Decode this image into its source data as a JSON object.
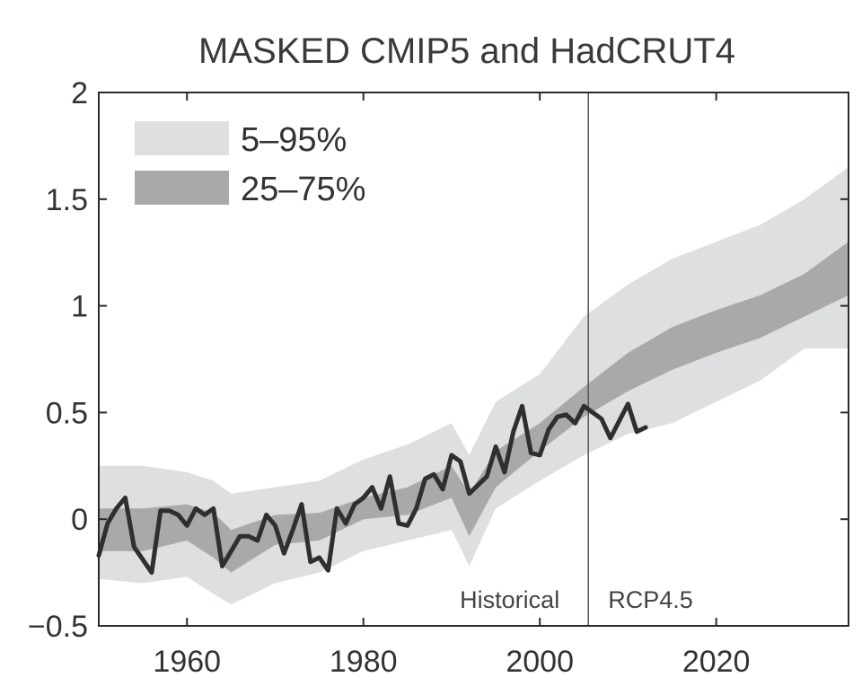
{
  "chart_data": {
    "type": "area",
    "title": "MASKED CMIP5 and HadCRUT4",
    "xlabel": "",
    "ylabel": "",
    "xlim": [
      1950,
      2035
    ],
    "ylim": [
      -0.5,
      2
    ],
    "xticks": [
      1960,
      1980,
      2000,
      2020
    ],
    "yticks": [
      -0.5,
      0,
      0.5,
      1,
      1.5,
      2
    ],
    "ytick_labels": [
      "−0.5",
      "0",
      "0.5",
      "1",
      "1.5",
      "2"
    ],
    "grid": false,
    "legend": {
      "placement": "top-left",
      "entries": [
        {
          "label": "5–95%",
          "color": "#dddfe0"
        },
        {
          "label": "25–75%",
          "color": "#a9a9a9"
        }
      ]
    },
    "divider": {
      "x": 2005.5,
      "left_label": "Historical",
      "right_label": "RCP4.5"
    },
    "bands": {
      "x": [
        1950,
        1955,
        1960,
        1963,
        1965,
        1970,
        1975,
        1980,
        1985,
        1990,
        1992,
        1995,
        2000,
        2005,
        2010,
        2015,
        2020,
        2025,
        2030,
        2035
      ],
      "p5": [
        -0.28,
        -0.3,
        -0.27,
        -0.35,
        -0.4,
        -0.3,
        -0.25,
        -0.15,
        -0.1,
        -0.05,
        -0.22,
        0.05,
        0.18,
        0.3,
        0.4,
        0.45,
        0.55,
        0.65,
        0.8,
        0.8
      ],
      "p25": [
        -0.15,
        -0.15,
        -0.1,
        -0.18,
        -0.25,
        -0.12,
        -0.1,
        0.0,
        0.02,
        0.1,
        -0.08,
        0.15,
        0.32,
        0.48,
        0.6,
        0.7,
        0.78,
        0.85,
        0.95,
        1.05
      ],
      "p75": [
        0.05,
        0.05,
        0.07,
        0.03,
        -0.05,
        0.02,
        0.03,
        0.1,
        0.15,
        0.25,
        0.12,
        0.32,
        0.45,
        0.62,
        0.78,
        0.9,
        0.98,
        1.05,
        1.15,
        1.3
      ],
      "p95": [
        0.25,
        0.25,
        0.22,
        0.18,
        0.12,
        0.15,
        0.18,
        0.28,
        0.35,
        0.45,
        0.3,
        0.55,
        0.68,
        0.95,
        1.1,
        1.22,
        1.3,
        1.38,
        1.5,
        1.65
      ]
    },
    "series": [
      {
        "color": "#2f2f2f",
        "x": [
          1950,
          1951,
          1952,
          1953,
          1954,
          1955,
          1956,
          1957,
          1958,
          1959,
          1960,
          1961,
          1962,
          1963,
          1964,
          1965,
          1966,
          1967,
          1968,
          1969,
          1970,
          1971,
          1972,
          1973,
          1974,
          1975,
          1976,
          1977,
          1978,
          1979,
          1980,
          1981,
          1982,
          1983,
          1984,
          1985,
          1986,
          1987,
          1988,
          1989,
          1990,
          1991,
          1992,
          1993,
          1994,
          1995,
          1996,
          1997,
          1998,
          1999,
          2000,
          2001,
          2002,
          2003,
          2004,
          2005,
          2006,
          2007,
          2008,
          2009,
          2010,
          2011,
          2012
        ],
        "values": [
          -0.17,
          -0.02,
          0.05,
          0.1,
          -0.13,
          -0.19,
          -0.25,
          0.04,
          0.04,
          0.02,
          -0.03,
          0.05,
          0.02,
          0.05,
          -0.22,
          -0.15,
          -0.08,
          -0.08,
          -0.1,
          0.02,
          -0.03,
          -0.16,
          -0.05,
          0.07,
          -0.2,
          -0.18,
          -0.24,
          0.05,
          -0.02,
          0.07,
          0.1,
          0.15,
          0.05,
          0.2,
          -0.02,
          -0.03,
          0.05,
          0.19,
          0.21,
          0.14,
          0.3,
          0.27,
          0.12,
          0.16,
          0.2,
          0.34,
          0.22,
          0.41,
          0.53,
          0.31,
          0.3,
          0.42,
          0.48,
          0.49,
          0.45,
          0.53,
          0.5,
          0.47,
          0.38,
          0.46,
          0.54,
          0.41,
          0.43
        ]
      }
    ]
  }
}
